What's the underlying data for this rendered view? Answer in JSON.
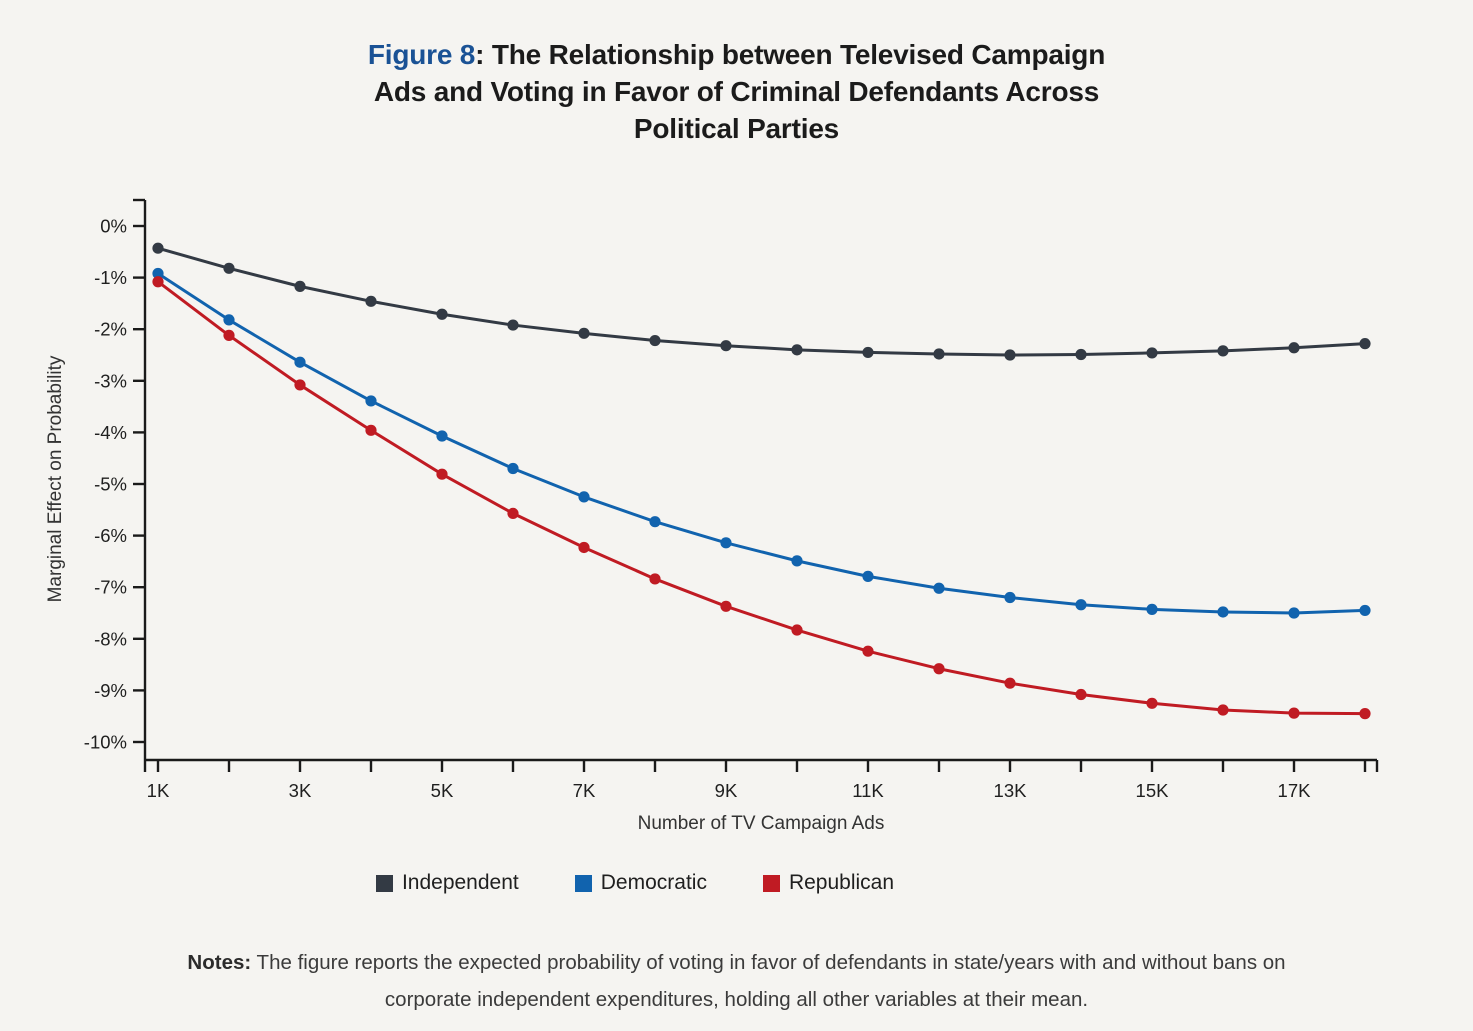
{
  "title": {
    "line1_prefix": "Figure 8",
    "line1_rest": ": The Relationship between Televised Campaign",
    "line2": "Ads and Voting in Favor of Criminal Defendants Across",
    "line3": "Political Parties",
    "prefix_color": "#1a5295"
  },
  "chart_data": {
    "type": "line",
    "title": "Figure 8: The Relationship between Televised Campaign Ads and Voting in Favor of Criminal Defendants Across Political Parties",
    "xlabel": "Number of TV Campaign Ads",
    "ylabel": "Marginal Effect on Probability",
    "x_units": "thousands of ads",
    "x": [
      1,
      2,
      3,
      4,
      5,
      6,
      7,
      8,
      9,
      10,
      11,
      12,
      13,
      14,
      15,
      16,
      17,
      18
    ],
    "x_ticks": [
      {
        "k": 1,
        "label": "1K"
      },
      {
        "k": 2,
        "label": ""
      },
      {
        "k": 3,
        "label": "3K"
      },
      {
        "k": 4,
        "label": ""
      },
      {
        "k": 5,
        "label": "5K"
      },
      {
        "k": 6,
        "label": ""
      },
      {
        "k": 7,
        "label": "7K"
      },
      {
        "k": 8,
        "label": ""
      },
      {
        "k": 9,
        "label": "9K"
      },
      {
        "k": 10,
        "label": ""
      },
      {
        "k": 11,
        "label": "11K"
      },
      {
        "k": 12,
        "label": ""
      },
      {
        "k": 13,
        "label": "13K"
      },
      {
        "k": 14,
        "label": ""
      },
      {
        "k": 15,
        "label": "15K"
      },
      {
        "k": 16,
        "label": ""
      },
      {
        "k": 17,
        "label": "17K"
      },
      {
        "k": 18,
        "label": ""
      }
    ],
    "y_ticks": [
      {
        "value": 0,
        "label": "0%"
      },
      {
        "value": -1,
        "label": "-1%"
      },
      {
        "value": -2,
        "label": "-2%"
      },
      {
        "value": -3,
        "label": "-3%"
      },
      {
        "value": -4,
        "label": "-4%"
      },
      {
        "value": -5,
        "label": "-5%"
      },
      {
        "value": -6,
        "label": "-6%"
      },
      {
        "value": -7,
        "label": "-7%"
      },
      {
        "value": -8,
        "label": "-8%"
      },
      {
        "value": -9,
        "label": "-9%"
      },
      {
        "value": -10,
        "label": "-10%"
      }
    ],
    "ylim": [
      -10.8,
      0.5
    ],
    "grid": false,
    "legend_position": "bottom",
    "series": [
      {
        "name": "Independent",
        "color": "#333a44",
        "values": [
          -0.43,
          -0.82,
          -1.17,
          -1.46,
          -1.71,
          -1.92,
          -2.08,
          -2.22,
          -2.32,
          -2.4,
          -2.45,
          -2.48,
          -2.5,
          -2.49,
          -2.46,
          -2.42,
          -2.36,
          -2.28
        ]
      },
      {
        "name": "Democratic",
        "color": "#1163ae",
        "values": [
          -0.92,
          -1.82,
          -2.64,
          -3.39,
          -4.07,
          -4.7,
          -5.25,
          -5.73,
          -6.14,
          -6.49,
          -6.79,
          -7.02,
          -7.2,
          -7.34,
          -7.43,
          -7.48,
          -7.5,
          -7.45
        ]
      },
      {
        "name": "Republican",
        "color": "#c01b23",
        "values": [
          -1.08,
          -2.12,
          -3.08,
          -3.96,
          -4.81,
          -5.57,
          -6.23,
          -6.84,
          -7.37,
          -7.83,
          -8.24,
          -8.58,
          -8.86,
          -9.08,
          -9.25,
          -9.38,
          -9.44,
          -9.45
        ]
      }
    ]
  },
  "notes": {
    "label": "Notes:",
    "line1_rest": " The figure reports the expected probability of voting in favor of defendants in state/years with and without bans on",
    "line2": "corporate independent expenditures, holding all other variables at their mean."
  }
}
